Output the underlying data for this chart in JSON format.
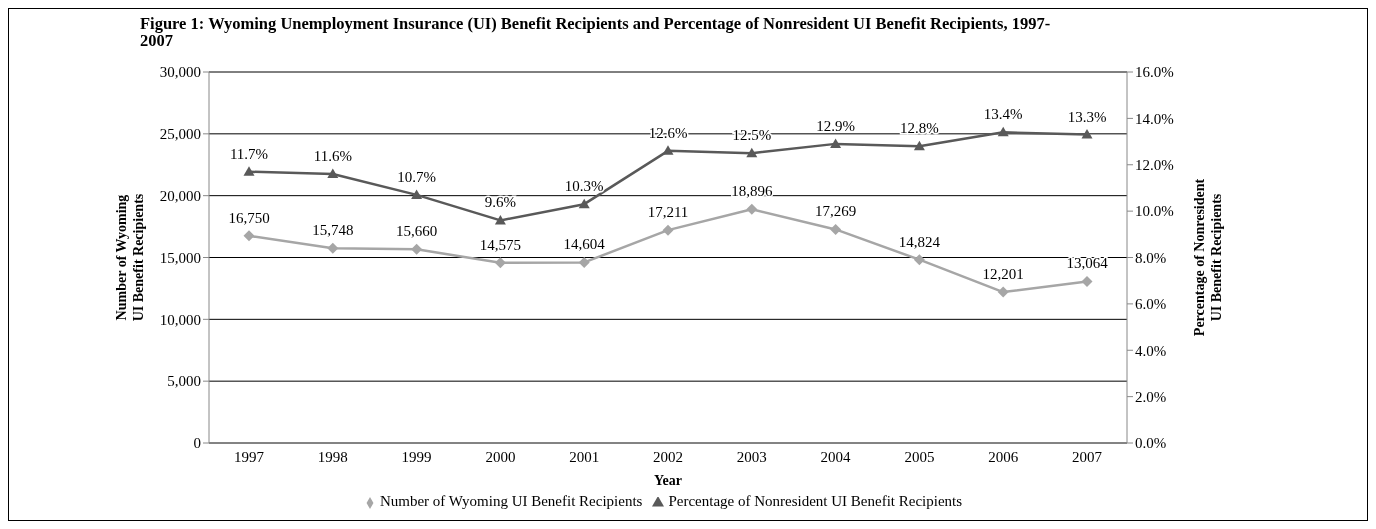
{
  "chart_data": {
    "type": "line",
    "title": "Figure 1: Wyoming Unemployment Insurance (UI) Benefit Recipients and Percentage of Nonresident UI Benefit Recipients, 1997-2007",
    "xlabel": "Year",
    "ylabel": "Number of Wyoming\nUI Benefit Recipients",
    "y2label": "Percentage of Nonresident\nUI Benefit Recipients",
    "categories": [
      "1997",
      "1998",
      "1999",
      "2000",
      "2001",
      "2002",
      "2003",
      "2004",
      "2005",
      "2006",
      "2007"
    ],
    "series": [
      {
        "name": "Number of Wyoming UI Benefit Recipients",
        "color": "#a6a6a6",
        "marker": "diamond",
        "values": [
          16750,
          15748,
          15660,
          14575,
          14604,
          17211,
          18896,
          17269,
          14824,
          12201,
          13064
        ],
        "value_labels": [
          "16,750",
          "15,748",
          "15,660",
          "14,575",
          "14,604",
          "17,211",
          "18,896",
          "17,269",
          "14,824",
          "12,201",
          "13,064"
        ]
      },
      {
        "name": "Percentage of Nonresident UI Benefit Recipients",
        "color": "#595959",
        "marker": "triangle",
        "axis": "y2",
        "values": [
          11.7,
          11.6,
          10.7,
          9.6,
          10.3,
          12.6,
          12.5,
          12.9,
          12.8,
          13.4,
          13.3
        ],
        "value_labels": [
          "11.7%",
          "11.6%",
          "10.7%",
          "9.6%",
          "10.3%",
          "12.6%",
          "12.5%",
          "12.9%",
          "12.8%",
          "13.4%",
          "13.3%"
        ]
      }
    ],
    "ylim": [
      0,
      30000
    ],
    "yticks": [
      {
        "value": 0,
        "label": "0"
      },
      {
        "value": 5000,
        "label": "5,000"
      },
      {
        "value": 10000,
        "label": "10,000"
      },
      {
        "value": 15000,
        "label": "15,000"
      },
      {
        "value": 20000,
        "label": "20,000"
      },
      {
        "value": 25000,
        "label": "25,000"
      },
      {
        "value": 30000,
        "label": "30,000"
      }
    ],
    "y2lim": [
      0,
      16
    ],
    "y2ticks": [
      {
        "value": 0,
        "label": "0.0%"
      },
      {
        "value": 2,
        "label": "2.0%"
      },
      {
        "value": 4,
        "label": "4.0%"
      },
      {
        "value": 6,
        "label": "6.0%"
      },
      {
        "value": 8,
        "label": "8.0%"
      },
      {
        "value": 10,
        "label": "10.0%"
      },
      {
        "value": 12,
        "label": "12.0%"
      },
      {
        "value": 14,
        "label": "14.0%"
      },
      {
        "value": 16,
        "label": "16.0%"
      }
    ],
    "grid": "y",
    "legend": "bottom",
    "line_style": "solid"
  }
}
